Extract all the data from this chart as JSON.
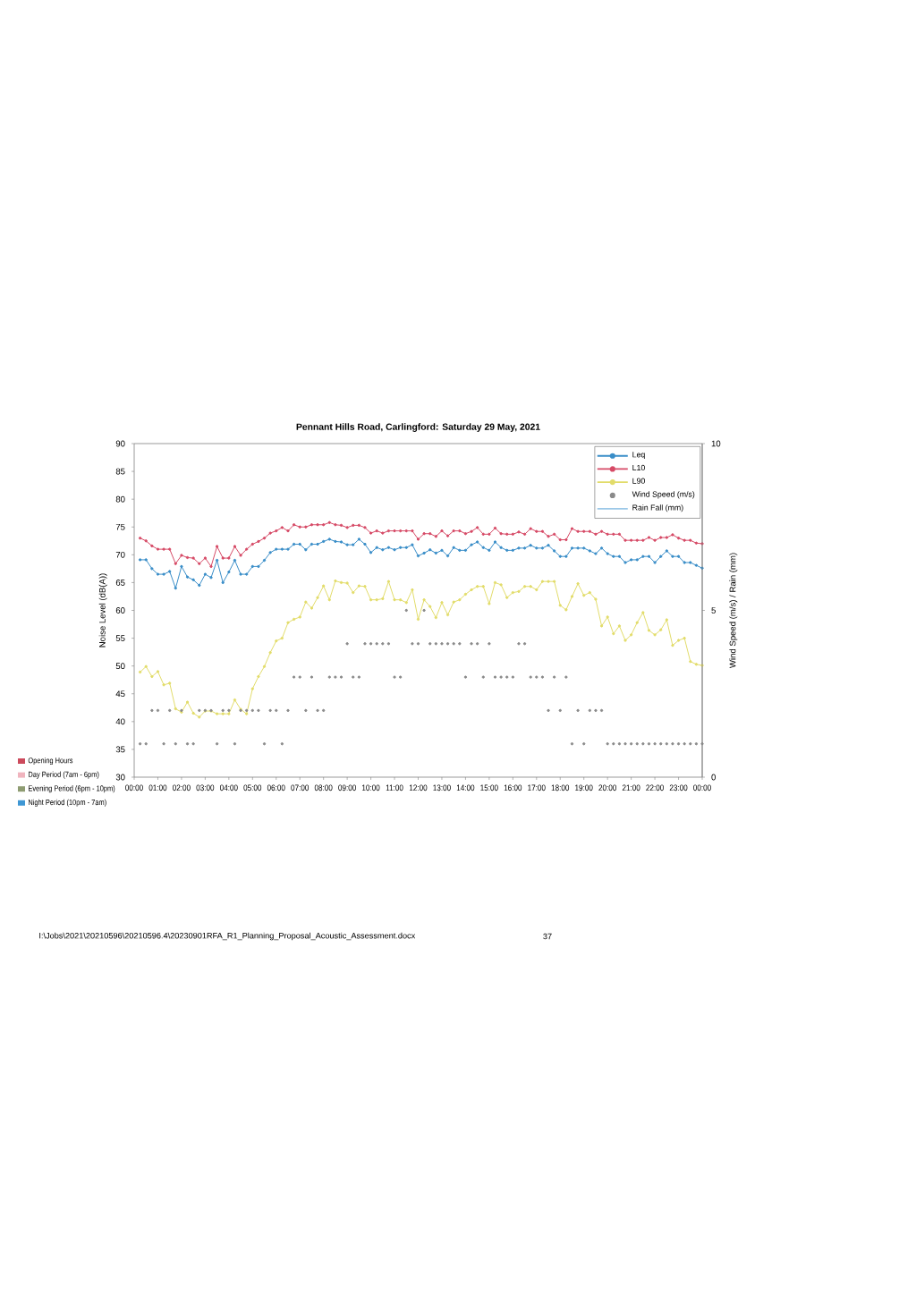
{
  "chart_data": [
    {
      "type": "line",
      "title": "Pennant Hills Road, Carlingford: Saturday 29 May, 2021",
      "ylabel": "Noise Level (dB(A))",
      "y2label": "Wind Speed (m/s) / Rain (mm)",
      "x": [
        0.25,
        0.5,
        0.75,
        1,
        1.25,
        1.5,
        1.75,
        2,
        2.25,
        2.5,
        2.75,
        3,
        3.25,
        3.5,
        3.75,
        4,
        4.25,
        4.5,
        4.75,
        5,
        5.25,
        5.5,
        5.75,
        6,
        6.25,
        6.5,
        6.75,
        7,
        7.25,
        7.5,
        7.75,
        8,
        8.25,
        8.5,
        8.75,
        9,
        9.25,
        9.5,
        9.75,
        10,
        10.25,
        10.5,
        10.75,
        11,
        11.25,
        11.5,
        11.75,
        12,
        12.25,
        12.5,
        12.75,
        13,
        13.25,
        13.5,
        13.75,
        14,
        14.25,
        14.5,
        14.75,
        15,
        15.25,
        15.5,
        15.75,
        16,
        16.25,
        16.5,
        16.75,
        17,
        17.25,
        17.5,
        17.75,
        18,
        18.25,
        18.5,
        18.75,
        19,
        19.25,
        19.5,
        19.75,
        20,
        20.25,
        20.5,
        20.75,
        21,
        21.25,
        21.5,
        21.75,
        22,
        22.25,
        22.5,
        22.75,
        23,
        23.25,
        23.5,
        23.75,
        24
      ],
      "xlim": [
        0,
        24
      ],
      "xticks": [
        {
          "value": 0,
          "label": "00:00"
        },
        {
          "value": 1,
          "label": "01:00"
        },
        {
          "value": 2,
          "label": "02:00"
        },
        {
          "value": 3,
          "label": "03:00"
        },
        {
          "value": 4,
          "label": "04:00"
        },
        {
          "value": 5,
          "label": "05:00"
        },
        {
          "value": 6,
          "label": "06:00"
        },
        {
          "value": 7,
          "label": "07:00"
        },
        {
          "value": 8,
          "label": "08:00"
        },
        {
          "value": 9,
          "label": "09:00"
        },
        {
          "value": 10,
          "label": "10:00"
        },
        {
          "value": 11,
          "label": "11:00"
        },
        {
          "value": 12,
          "label": "12:00"
        },
        {
          "value": 13,
          "label": "13:00"
        },
        {
          "value": 14,
          "label": "14:00"
        },
        {
          "value": 15,
          "label": "15:00"
        },
        {
          "value": 16,
          "label": "16:00"
        },
        {
          "value": 17,
          "label": "17:00"
        },
        {
          "value": 18,
          "label": "18:00"
        },
        {
          "value": 19,
          "label": "19:00"
        },
        {
          "value": 20,
          "label": "20:00"
        },
        {
          "value": 21,
          "label": "21:00"
        },
        {
          "value": 22,
          "label": "22:00"
        },
        {
          "value": 23,
          "label": "23:00"
        },
        {
          "value": 24,
          "label": "00:00"
        }
      ],
      "ylim": [
        30,
        90
      ],
      "yticks": [
        30,
        35,
        40,
        45,
        50,
        55,
        60,
        65,
        70,
        75,
        80,
        85,
        90
      ],
      "y2lim": [
        0,
        10
      ],
      "y2ticks": [
        0,
        5,
        10
      ],
      "legend": "top right",
      "annotations": [
        "I:\\Jobs\\2021\\20210596\\20210596.4\\20230901RFA_R1_Planning_Proposal_Acoustic_Assessment.docx",
        "37"
      ],
      "series": [
        {
          "name": "Leq",
          "color": "#3a8ec8",
          "marker": "circle",
          "values": [
            69.1,
            69.1,
            67.5,
            66.5,
            66.5,
            67.0,
            64.0,
            67.9,
            66.0,
            65.5,
            64.5,
            66.5,
            65.9,
            69.0,
            65.0,
            66.9,
            69.0,
            66.5,
            66.5,
            67.9,
            67.9,
            69.0,
            70.4,
            71.0,
            71.0,
            71.0,
            71.9,
            71.9,
            70.9,
            71.9,
            71.9,
            72.4,
            72.8,
            72.4,
            72.3,
            71.8,
            71.8,
            72.8,
            71.9,
            70.4,
            71.3,
            70.9,
            71.3,
            70.9,
            71.3,
            71.3,
            71.8,
            69.8,
            70.3,
            70.9,
            70.3,
            70.8,
            69.8,
            71.3,
            70.8,
            70.8,
            71.8,
            72.3,
            71.3,
            70.8,
            72.3,
            71.3,
            70.8,
            70.8,
            71.2,
            71.2,
            71.7,
            71.2,
            71.2,
            71.7,
            70.7,
            69.7,
            69.7,
            71.2,
            71.2,
            71.2,
            70.7,
            70.2,
            71.2,
            70.2,
            69.7,
            69.7,
            68.6,
            69.1,
            69.1,
            69.7,
            69.7,
            68.6,
            69.7,
            70.7,
            69.7,
            69.7,
            68.6,
            68.6,
            68.1,
            67.6
          ]
        },
        {
          "name": "L10",
          "color": "#d64a66",
          "marker": "circle",
          "values": [
            73.0,
            72.5,
            71.6,
            71.0,
            71.0,
            71.0,
            68.4,
            69.9,
            69.5,
            69.4,
            68.4,
            69.4,
            67.9,
            71.5,
            69.4,
            69.4,
            71.5,
            69.9,
            71.0,
            71.9,
            72.4,
            73.0,
            73.9,
            74.3,
            74.9,
            74.3,
            75.4,
            75.0,
            75.0,
            75.4,
            75.4,
            75.4,
            75.8,
            75.4,
            75.3,
            74.9,
            75.3,
            75.3,
            74.9,
            73.9,
            74.3,
            73.9,
            74.3,
            74.3,
            74.3,
            74.3,
            74.3,
            72.8,
            73.8,
            73.8,
            73.3,
            74.3,
            73.4,
            74.3,
            74.3,
            73.8,
            74.2,
            74.9,
            73.7,
            73.7,
            74.8,
            73.8,
            73.7,
            73.7,
            74.1,
            73.7,
            74.7,
            74.2,
            74.2,
            73.3,
            73.7,
            72.7,
            72.7,
            74.7,
            74.2,
            74.2,
            74.2,
            73.7,
            74.2,
            73.7,
            73.7,
            73.7,
            72.6,
            72.6,
            72.6,
            72.6,
            73.1,
            72.6,
            73.1,
            73.1,
            73.6,
            73.0,
            72.6,
            72.6,
            72.1,
            72.0
          ]
        },
        {
          "name": "L90",
          "color": "#e2dc6a",
          "marker": "circle",
          "values": [
            48.9,
            49.9,
            48.1,
            49.0,
            46.6,
            46.9,
            42.3,
            41.7,
            43.5,
            41.5,
            40.8,
            41.9,
            41.9,
            41.4,
            41.4,
            41.4,
            43.9,
            42.2,
            41.4,
            45.9,
            48.1,
            49.9,
            52.4,
            54.5,
            55.0,
            57.8,
            58.4,
            58.8,
            61.5,
            60.4,
            62.3,
            64.4,
            61.9,
            65.3,
            65.0,
            64.9,
            63.2,
            64.4,
            64.3,
            61.9,
            61.9,
            62.1,
            65.2,
            61.9,
            61.9,
            61.4,
            63.7,
            58.4,
            61.9,
            60.7,
            58.7,
            61.4,
            59.2,
            61.5,
            61.9,
            62.9,
            63.7,
            64.3,
            64.3,
            61.2,
            65.0,
            64.6,
            62.3,
            63.2,
            63.4,
            64.3,
            64.3,
            63.7,
            65.2,
            65.2,
            65.2,
            60.9,
            60.1,
            62.5,
            64.8,
            62.7,
            63.2,
            62.0,
            57.2,
            58.8,
            55.8,
            57.2,
            54.6,
            55.6,
            57.8,
            59.6,
            56.4,
            55.6,
            56.5,
            58.3,
            53.7,
            54.6,
            55.0,
            50.8,
            50.3,
            50.1
          ]
        },
        {
          "name": "Wind Speed (m/s)",
          "type": "scatter",
          "axis": "y2",
          "color": "#8a8a8a",
          "marker": "circle",
          "values": [
            1,
            1,
            2,
            2,
            1,
            2,
            1,
            2,
            1,
            1,
            2,
            2,
            2,
            1,
            2,
            2,
            1,
            2,
            2,
            2,
            2,
            1,
            2,
            2,
            1,
            2,
            3,
            3,
            2,
            3,
            2,
            2,
            3,
            3,
            3,
            4,
            3,
            3,
            4,
            4,
            4,
            4,
            4,
            3,
            3,
            5,
            4,
            4,
            5,
            4,
            4,
            4,
            4,
            4,
            4,
            3,
            4,
            4,
            3,
            4,
            3,
            3,
            3,
            3,
            4,
            4,
            3,
            3,
            3,
            2,
            3,
            2,
            3,
            1,
            2,
            1,
            2,
            2,
            2,
            1,
            1,
            1,
            1,
            1,
            1,
            1,
            1,
            1,
            1,
            1,
            1,
            1,
            1,
            1,
            1,
            1
          ]
        },
        {
          "name": "Rain Fall (mm)",
          "type": "line",
          "axis": "y2",
          "color": "#9cc8e8",
          "marker": "none",
          "values": [
            null,
            null,
            null,
            null,
            null,
            null,
            null,
            null,
            null,
            null,
            null,
            null,
            null,
            null,
            null,
            null,
            null,
            null,
            null,
            null,
            null,
            null,
            null,
            null,
            null,
            null,
            null,
            null,
            null,
            null,
            null,
            null,
            null,
            null,
            null,
            null,
            null,
            null,
            null,
            null,
            null,
            null,
            null,
            null,
            null,
            null,
            null,
            null,
            null,
            null,
            null,
            null,
            null,
            null,
            null,
            null,
            null,
            null,
            null,
            null,
            null,
            null,
            null,
            null,
            null,
            null,
            null,
            null,
            null,
            null,
            null,
            null,
            null,
            null,
            null,
            null,
            null,
            null,
            null,
            null,
            null,
            null,
            null,
            null,
            null,
            null,
            null,
            null,
            null,
            null,
            null,
            null,
            null,
            null,
            null,
            null
          ]
        }
      ]
    },
    {
      "type": "other",
      "categories": [
        "Opening Hours",
        "Day Period (7am - 6pm)",
        "Evening Period (6pm - 10pm)",
        "Night Period (10pm - 7am)"
      ],
      "colors": [
        "#cc4a5c",
        "#f0b4be",
        "#8e9c72",
        "#3f97d4"
      ]
    }
  ]
}
